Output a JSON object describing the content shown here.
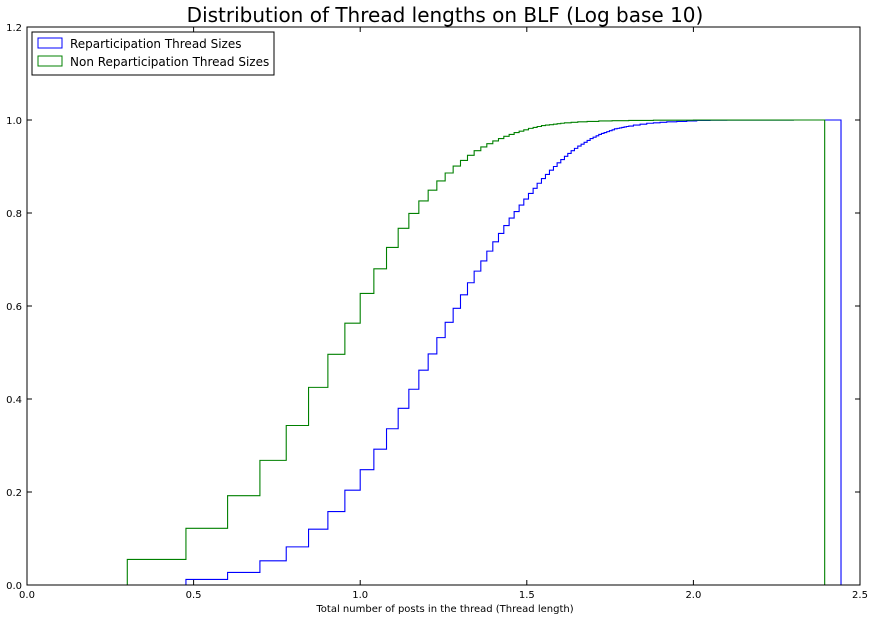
{
  "chart_data": {
    "type": "line",
    "title": "Distribution of Thread lengths on BLF (Log base 10)",
    "xlabel": "Total number of posts in the thread (Thread length)",
    "ylabel": "",
    "xlim": [
      0.0,
      2.5
    ],
    "ylim": [
      0.0,
      1.2
    ],
    "xticks": [
      "0.0",
      "0.5",
      "1.0",
      "1.5",
      "2.0",
      "2.5"
    ],
    "yticks": [
      "0.0",
      "0.2",
      "0.4",
      "0.6",
      "0.8",
      "1.0",
      "1.2"
    ],
    "grid": false,
    "legend_position": "top-left",
    "series": [
      {
        "name": "Reparticipation Thread Sizes",
        "color": "#0000ff",
        "drawstyle": "steps-post",
        "x": [
          0.477,
          0.602,
          0.699,
          0.778,
          0.845,
          0.903,
          0.954,
          1.0,
          1.041,
          1.079,
          1.114,
          1.146,
          1.176,
          1.204,
          1.23,
          1.255,
          1.279,
          1.301,
          1.322,
          1.342,
          1.362,
          1.38,
          1.398,
          1.415,
          1.431,
          1.447,
          1.462,
          1.477,
          1.491,
          1.505,
          1.519,
          1.531,
          1.544,
          1.556,
          1.568,
          1.58,
          1.591,
          1.602,
          1.613,
          1.623,
          1.633,
          1.643,
          1.653,
          1.663,
          1.672,
          1.681,
          1.69,
          1.699,
          1.708,
          1.716,
          1.724,
          1.732,
          1.74,
          1.748,
          1.756,
          1.763,
          1.771,
          1.778,
          1.785,
          1.792,
          1.799,
          1.806,
          1.82,
          1.84,
          1.86,
          1.88,
          1.9,
          1.92,
          1.95,
          1.98,
          2.01,
          2.05,
          2.1,
          2.2,
          2.3,
          2.443
        ],
        "y": [
          0.012,
          0.027,
          0.052,
          0.082,
          0.12,
          0.158,
          0.204,
          0.248,
          0.292,
          0.336,
          0.38,
          0.421,
          0.462,
          0.497,
          0.532,
          0.565,
          0.595,
          0.624,
          0.65,
          0.675,
          0.697,
          0.718,
          0.738,
          0.756,
          0.773,
          0.789,
          0.803,
          0.817,
          0.83,
          0.842,
          0.853,
          0.864,
          0.874,
          0.883,
          0.892,
          0.9,
          0.908,
          0.915,
          0.922,
          0.928,
          0.934,
          0.939,
          0.944,
          0.948,
          0.952,
          0.956,
          0.96,
          0.963,
          0.966,
          0.969,
          0.971,
          0.973,
          0.975,
          0.977,
          0.979,
          0.981,
          0.982,
          0.983,
          0.984,
          0.985,
          0.986,
          0.987,
          0.989,
          0.991,
          0.993,
          0.994,
          0.995,
          0.996,
          0.997,
          0.998,
          0.999,
          0.9995,
          0.9998,
          0.9999,
          1.0,
          0.0
        ]
      },
      {
        "name": "Non Reparticipation Thread Sizes",
        "color": "#008000",
        "drawstyle": "steps-post",
        "x": [
          0.301,
          0.477,
          0.602,
          0.699,
          0.778,
          0.845,
          0.903,
          0.954,
          1.0,
          1.041,
          1.079,
          1.114,
          1.146,
          1.176,
          1.204,
          1.23,
          1.255,
          1.279,
          1.301,
          1.322,
          1.342,
          1.362,
          1.38,
          1.398,
          1.415,
          1.431,
          1.447,
          1.462,
          1.477,
          1.491,
          1.505,
          1.519,
          1.531,
          1.544,
          1.556,
          1.568,
          1.58,
          1.591,
          1.602,
          1.613,
          1.633,
          1.653,
          1.681,
          1.716,
          1.756,
          1.806,
          1.88,
          2.0,
          2.15,
          2.3,
          2.394
        ],
        "y": [
          0.055,
          0.122,
          0.192,
          0.268,
          0.343,
          0.425,
          0.496,
          0.563,
          0.627,
          0.68,
          0.726,
          0.767,
          0.799,
          0.826,
          0.849,
          0.869,
          0.886,
          0.901,
          0.913,
          0.924,
          0.934,
          0.942,
          0.949,
          0.955,
          0.96,
          0.965,
          0.969,
          0.973,
          0.976,
          0.979,
          0.982,
          0.984,
          0.986,
          0.988,
          0.989,
          0.99,
          0.991,
          0.992,
          0.993,
          0.994,
          0.995,
          0.996,
          0.997,
          0.998,
          0.9985,
          0.999,
          0.9995,
          0.9998,
          0.9999,
          1.0,
          0.0
        ]
      }
    ]
  }
}
